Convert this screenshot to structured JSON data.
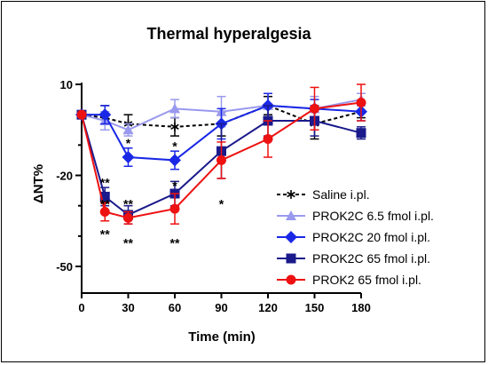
{
  "chart_data": {
    "type": "line",
    "title": "Thermal hyperalgesia",
    "xlabel": "Time (min)",
    "ylabel": "ΔNT%",
    "xlim": [
      0,
      180
    ],
    "ylim": [
      -60,
      10
    ],
    "xticks": [
      "0",
      "30",
      "60",
      "90",
      "120",
      "150",
      "180"
    ],
    "yticks": [
      "10",
      "-20",
      "-50"
    ],
    "x": [
      0,
      15,
      30,
      60,
      90,
      120,
      150,
      180
    ],
    "legend_position": "bottom-right",
    "series": [
      {
        "name": "Saline i.pl.",
        "color": "#000000",
        "marker": "asterisk",
        "linestyle": "dashed",
        "values": [
          0,
          -1,
          -3,
          -4,
          -3,
          3,
          -3,
          1
        ],
        "errors": [
          0,
          4,
          3,
          3,
          4,
          3,
          5,
          2
        ]
      },
      {
        "name": "PROK2C 6.5 fmol i.pl.",
        "color": "#9999ee",
        "marker": "triangle",
        "linestyle": "solid",
        "values": [
          0,
          -2,
          -5,
          2,
          1,
          3,
          2,
          5
        ],
        "errors": [
          0,
          3,
          2,
          3,
          5,
          4,
          4,
          2
        ]
      },
      {
        "name": "PROK2C 20 fmol i.pl.",
        "color": "#1a28e6",
        "marker": "diamond",
        "linestyle": "solid",
        "values": [
          0,
          0,
          -14,
          -15,
          -3,
          3,
          2,
          1
        ],
        "errors": [
          0,
          3,
          3,
          3,
          5,
          4,
          3,
          3
        ]
      },
      {
        "name": "PROK2C 65 fmol i.pl.",
        "color": "#1a1a8c",
        "marker": "square",
        "linestyle": "solid",
        "values": [
          0,
          -27,
          -33,
          -26,
          -12,
          -2,
          -2,
          -6
        ],
        "errors": [
          0,
          3,
          3,
          4,
          9,
          5,
          5,
          2
        ]
      },
      {
        "name": "PROK2 65 fmol i.pl.",
        "color": "#ee1111",
        "marker": "circle",
        "linestyle": "solid",
        "values": [
          0,
          -32,
          -34,
          -31,
          -15,
          -8,
          2,
          4
        ],
        "errors": [
          0,
          3,
          2,
          5,
          6,
          6,
          7,
          6
        ]
      }
    ],
    "annotations": [
      {
        "x": 30,
        "y": -9,
        "text": "*"
      },
      {
        "x": 60,
        "y": -10,
        "text": "*"
      },
      {
        "x": 15,
        "y": -22,
        "text": "**"
      },
      {
        "x": 60,
        "y": -23,
        "text": "*"
      },
      {
        "x": 15,
        "y": -29,
        "text": "**"
      },
      {
        "x": 30,
        "y": -29,
        "text": "**"
      },
      {
        "x": 90,
        "y": -29,
        "text": "*"
      },
      {
        "x": 15,
        "y": -39,
        "text": "**"
      },
      {
        "x": 30,
        "y": -42,
        "text": "**"
      },
      {
        "x": 60,
        "y": -42,
        "text": "**"
      }
    ]
  }
}
